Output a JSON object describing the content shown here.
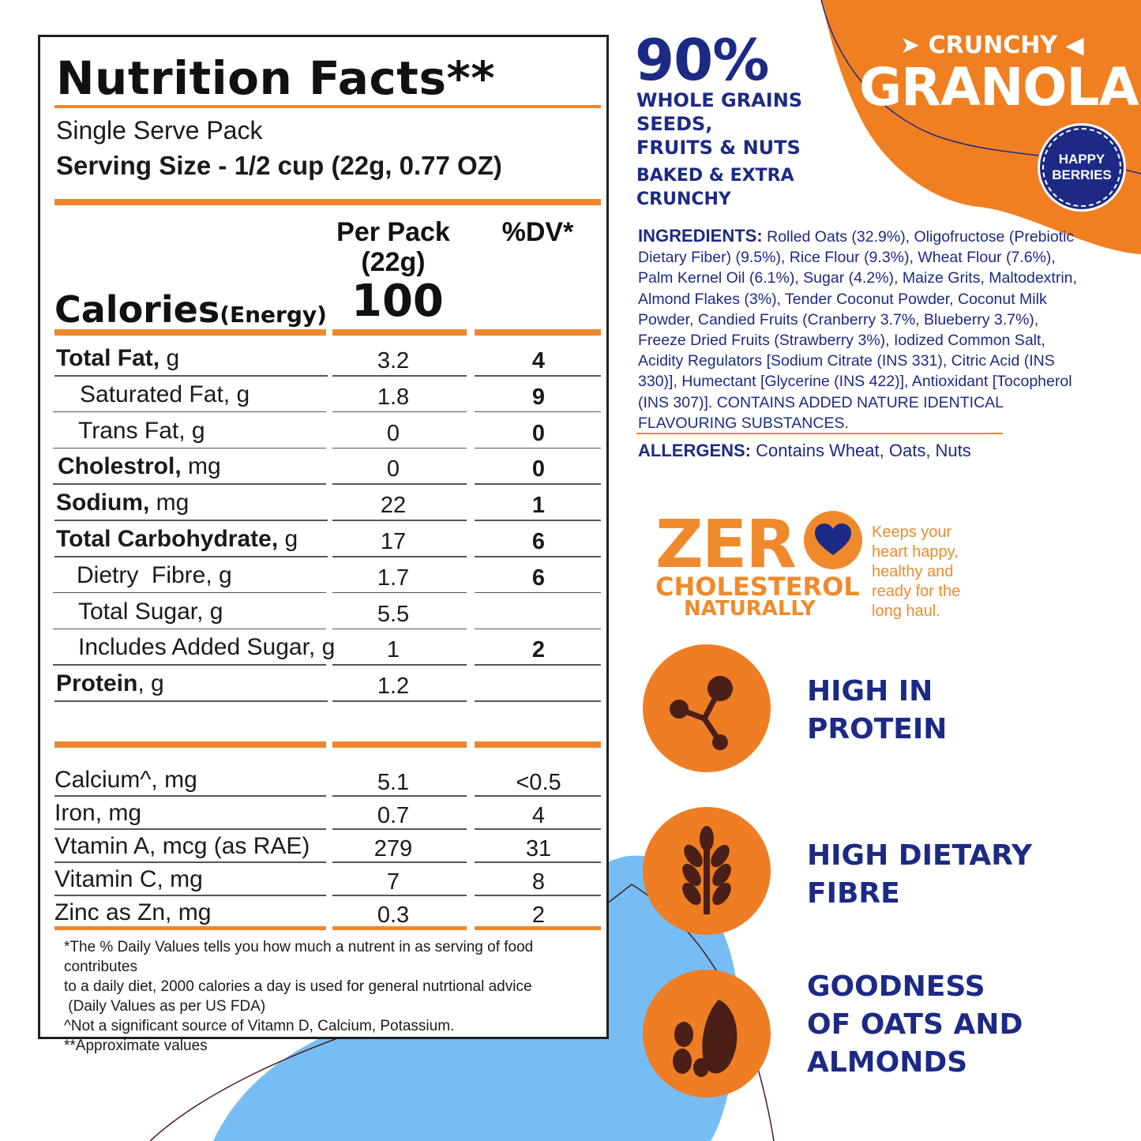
{
  "colors": {
    "orange": "#f0862a",
    "navy": "#1c2a85",
    "light_blue": "#77bdf5"
  },
  "nutrition": {
    "title": "Nutrition Facts**",
    "subtitle": "Single Serve Pack",
    "serving": "Serving Size - 1/2 cup (22g, 0.77 OZ)",
    "col_per_pack_1": "Per Pack",
    "col_per_pack_2": "(22g)",
    "col_dv": "%DV*",
    "calories_label": "Calories",
    "calories_sub": "(Energy)",
    "calories_value": "100",
    "rows": [
      {
        "bold": "Total Fat,",
        "rest": " g",
        "value": "3.2",
        "dv": "4"
      },
      {
        "bold": "",
        "rest": "Saturated Fat, g",
        "value": "1.8",
        "dv": "9"
      },
      {
        "bold": "",
        "rest": "Trans Fat, g",
        "value": "0",
        "dv": "0"
      },
      {
        "bold": "Cholestrol,",
        "rest": " mg",
        "value": "0",
        "dv": "0"
      },
      {
        "bold": "Sodium,",
        "rest": " mg",
        "value": "22",
        "dv": "1"
      },
      {
        "bold": "Total Carbohydrate,",
        "rest": " g",
        "value": "17",
        "dv": "6"
      },
      {
        "bold": "",
        "rest": "Dietry  Fibre, g",
        "value": "1.7",
        "dv": "6"
      },
      {
        "bold": "",
        "rest": "Total Sugar, g",
        "value": "5.5",
        "dv": ""
      },
      {
        "bold": "",
        "rest": "Includes Added Sugar, g",
        "value": "1",
        "dv": "2"
      },
      {
        "bold": "Protein",
        "rest": ", g",
        "value": "1.2",
        "dv": ""
      }
    ],
    "micros": [
      {
        "label": "Calcium^, mg",
        "value": "5.1",
        "dv": "<0.5"
      },
      {
        "label": "Iron, mg",
        "value": "0.7",
        "dv": "4"
      },
      {
        "label": "Vtamin A, mcg (as RAE)",
        "value": "279",
        "dv": "31"
      },
      {
        "label": "Vitamin C, mg",
        "value": "7",
        "dv": "8"
      },
      {
        "label": "Zinc as Zn, mg",
        "value": "0.3",
        "dv": "2"
      }
    ],
    "footnotes": [
      "*The % Daily Values tells you how much a nutrent in as serving of food contributes",
      "to a daily diet, 2000 calories a day is used for general nutrtional advice",
      " (Daily Values as per US FDA)",
      "^Not a significant source of Vitamn D, Calcium, Potassium.",
      "**Approximate values"
    ]
  },
  "brand": {
    "top": "CRUNCHY",
    "main": "GRANOLA",
    "badge_1": "HAPPY",
    "badge_2": "BERRIES"
  },
  "claims": {
    "percent": "90%",
    "line1": "WHOLE GRAINS",
    "line2": "SEEDS,",
    "line3": "FRUITS & NUTS",
    "line4": "BAKED & EXTRA",
    "line5": "CRUNCHY"
  },
  "ingredients": {
    "heading": "INGREDIENTS:",
    "text": " Rolled Oats (32.9%), Oligofructose (Prebiotic Dietary Fiber) (9.5%), Rice Flour (9.3%), Wheat Flour (7.6%), Palm Kernel Oil (6.1%), Sugar (4.2%), Maize Grits, Maltodextrin, Almond Flakes (3%), Tender Coconut Powder, Coconut Milk Powder, Candied Fruits (Cranberry 3.7%, Blueberry 3.7%), Freeze Dried Fruits (Strawberry 3%), Iodized Common Salt, Acidity Regulators [Sodium Citrate (INS 331), Citric Acid (INS 330)], Humectant [Glycerine (INS 422)], Antioxidant [Tocopherol (INS 307)]. CONTAINS ADDED NATURE IDENTICAL FLAVOURING SUBSTANCES."
  },
  "allergens": {
    "heading": "ALLERGENS:",
    "text": " Contains Wheat, Oats, Nuts"
  },
  "zero_cholesterol": {
    "zero": "ZER",
    "cholesterol": "CHOLESTEROL",
    "naturally": "NATURALLY",
    "tagline": [
      "Keeps your",
      "heart happy,",
      "healthy and",
      "ready for the",
      "long haul."
    ]
  },
  "features": [
    {
      "icon": "molecule-icon",
      "line1": "HIGH IN",
      "line2": "PROTEIN",
      "line3": ""
    },
    {
      "icon": "wheat-icon",
      "line1": "HIGH DIETARY",
      "line2": "FIBRE",
      "line3": ""
    },
    {
      "icon": "nuts-icon",
      "line1": "GOODNESS",
      "line2": "OF OATS AND",
      "line3": "ALMONDS"
    }
  ]
}
